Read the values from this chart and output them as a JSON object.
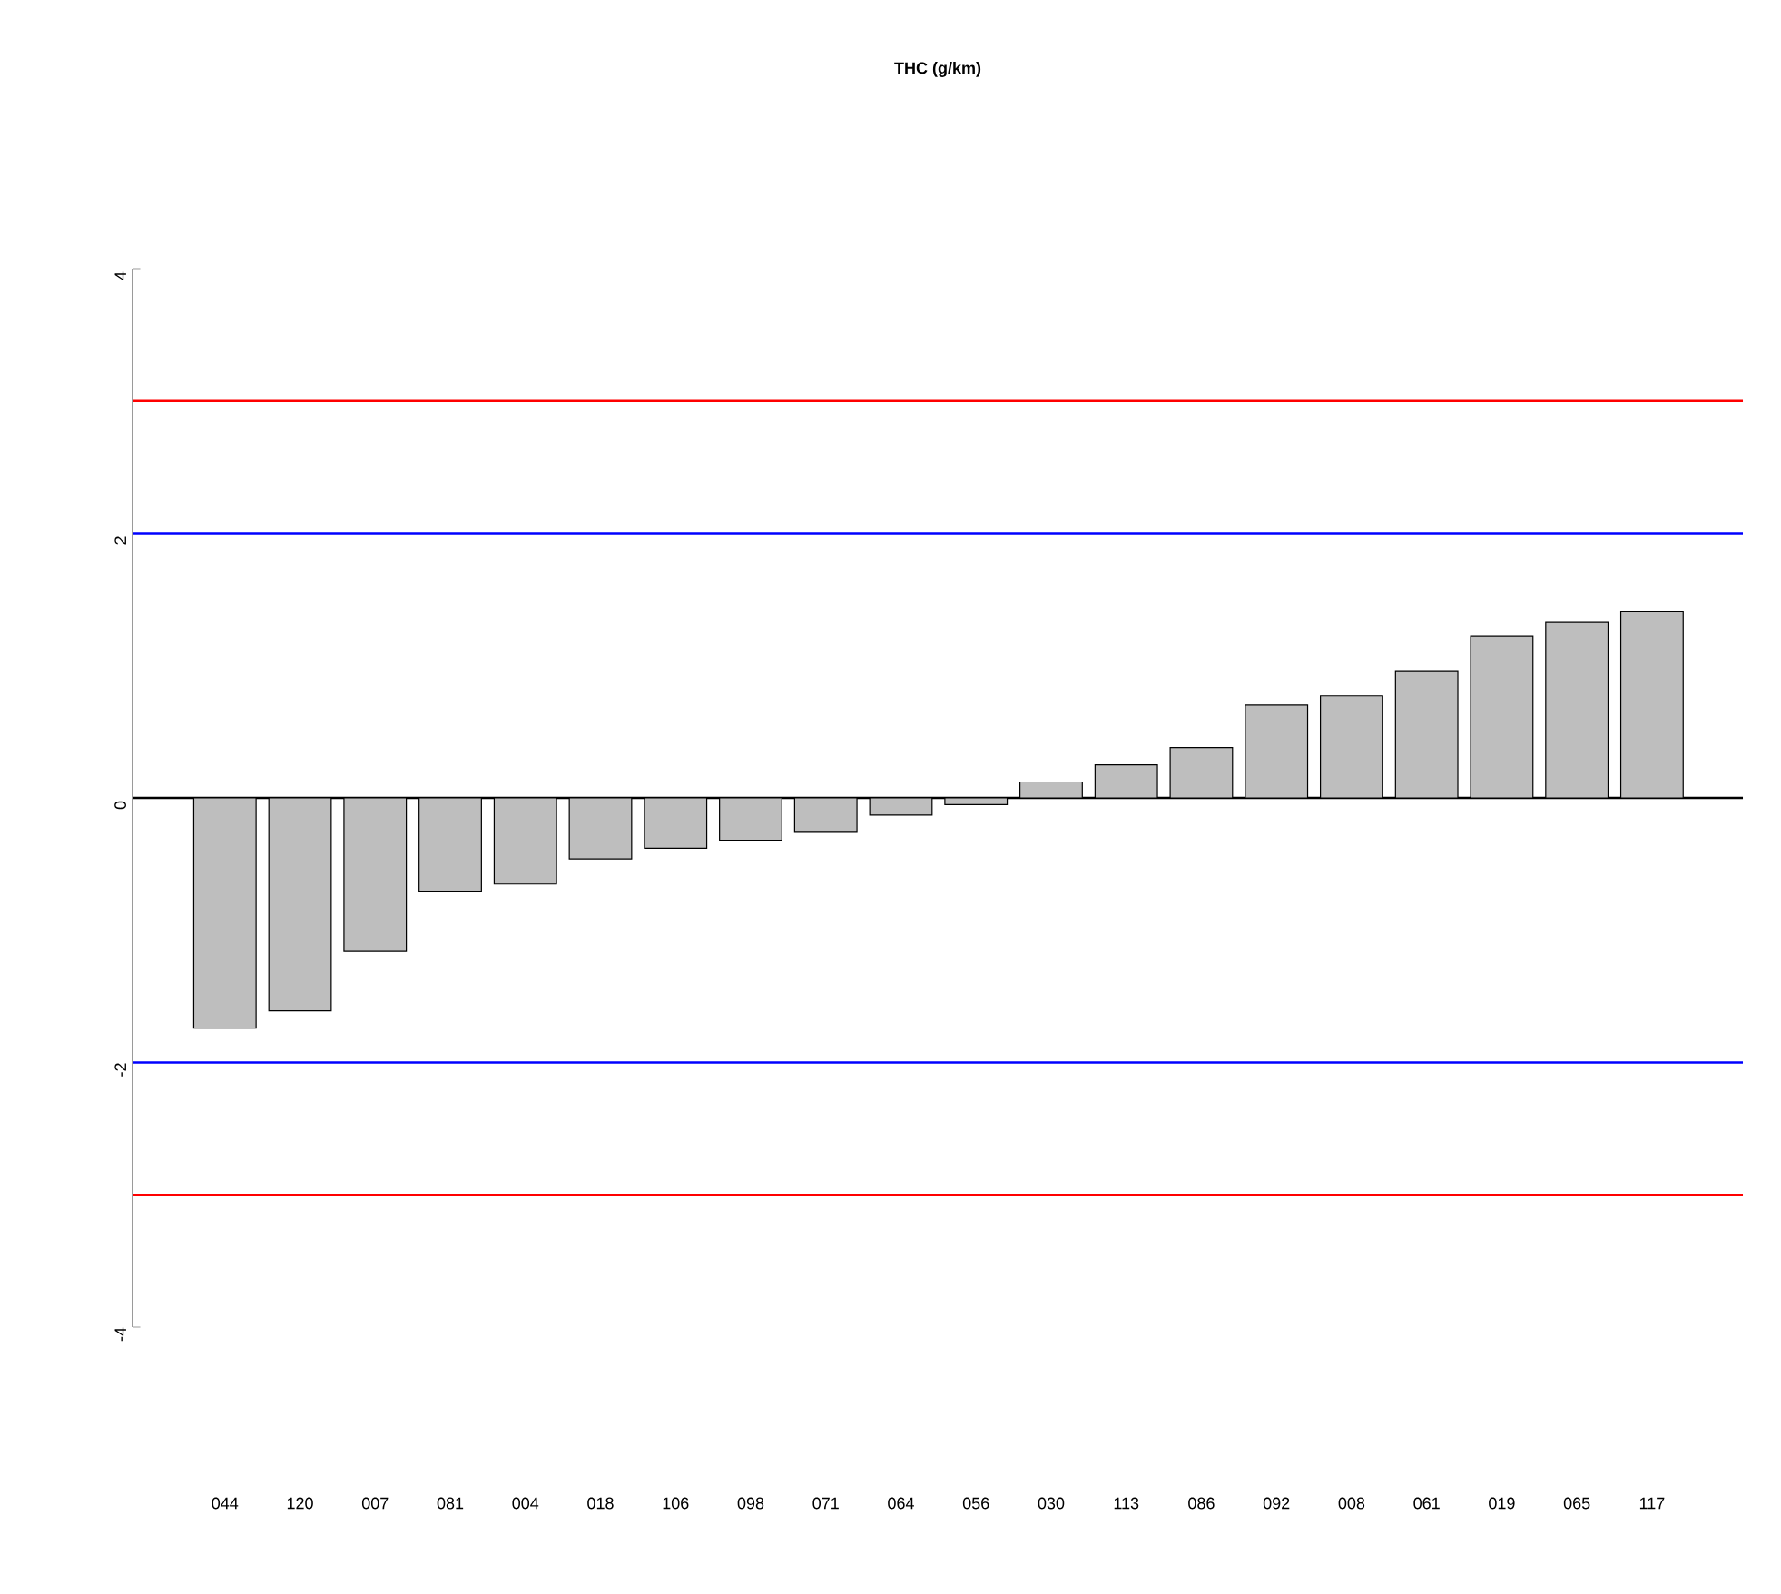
{
  "chart_data": {
    "type": "bar",
    "title": "THC (g/km)",
    "categories": [
      "044",
      "120",
      "007",
      "081",
      "004",
      "018",
      "106",
      "098",
      "071",
      "064",
      "056",
      "030",
      "113",
      "086",
      "092",
      "008",
      "061",
      "019",
      "065",
      "117"
    ],
    "values": [
      -1.74,
      -1.61,
      -1.16,
      -0.71,
      -0.65,
      -0.46,
      -0.38,
      -0.32,
      -0.26,
      -0.13,
      -0.05,
      0.12,
      0.25,
      0.38,
      0.7,
      0.77,
      0.96,
      1.22,
      1.33,
      1.41
    ],
    "color": "#bebebe",
    "ylim": [
      -4,
      4
    ],
    "yticks": [
      -4,
      -2,
      0,
      2,
      4
    ],
    "grid": false,
    "ref_lines": [
      {
        "axis": "y",
        "value": 3,
        "color": "#ff0000"
      },
      {
        "axis": "y",
        "value": 2,
        "color": "#0000ff"
      },
      {
        "axis": "y",
        "value": 0,
        "color": "#000000"
      },
      {
        "axis": "y",
        "value": -2,
        "color": "#0000ff"
      },
      {
        "axis": "y",
        "value": -3,
        "color": "#ff0000"
      }
    ]
  }
}
